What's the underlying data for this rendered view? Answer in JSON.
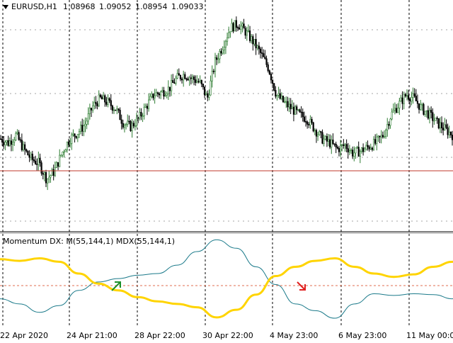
{
  "window": {
    "symbol_label": "EURUSD,H1",
    "quotes": [
      "1.08968",
      "1.09052",
      "1.08954",
      "1.09033"
    ],
    "dropdown_icon": "triangle-down-icon"
  },
  "indicator": {
    "label": "Momentum DX: M(55,144,1) MDX(55,144,1)"
  },
  "x_axis": {
    "labels": [
      "22 Apr 2020",
      "24 Apr 21:00",
      "28 Apr 22:00",
      "30 Apr 22:00",
      "4 May 23:00",
      "6 May 23:00",
      "11 May 00:00"
    ]
  },
  "colors": {
    "bull_candle": "#2e7d32",
    "bear_candle": "#000000",
    "level_line": "#c0392b",
    "momentum_line": "#ffd400",
    "mdx_line": "#1b7a8a",
    "zero_line": "#e26d4f",
    "buy_arrow": "#1e8f2a",
    "sell_arrow": "#e02020"
  },
  "chart_data": [
    {
      "type": "candlestick",
      "symbol": "EURUSD",
      "timeframe": "H1",
      "ohlc_last": {
        "open": 1.08968,
        "high": 1.09052,
        "low": 1.08954,
        "close": 1.09033
      },
      "x": [
        "22 Apr 2020",
        "24 Apr 21:00",
        "28 Apr 22:00",
        "30 Apr 22:00",
        "4 May 23:00",
        "6 May 23:00",
        "11 May 00:00"
      ],
      "close_profile": [
        0.4,
        0.38,
        0.42,
        0.35,
        0.3,
        0.28,
        0.2,
        0.24,
        0.33,
        0.4,
        0.43,
        0.47,
        0.56,
        0.6,
        0.58,
        0.55,
        0.48,
        0.46,
        0.5,
        0.56,
        0.62,
        0.63,
        0.65,
        0.7,
        0.72,
        0.7,
        0.68,
        0.6,
        0.78,
        0.86,
        0.95,
        0.97,
        0.93,
        0.88,
        0.82,
        0.75,
        0.62,
        0.58,
        0.55,
        0.52,
        0.5,
        0.45,
        0.4,
        0.38,
        0.35,
        0.37,
        0.33,
        0.34,
        0.36,
        0.38,
        0.42,
        0.52,
        0.57,
        0.62,
        0.6,
        0.55,
        0.52,
        0.48,
        0.45,
        0.42
      ],
      "grid": true
    },
    {
      "type": "line",
      "name": "Momentum DX",
      "series": [
        {
          "name": "M(55,144,1)",
          "values": [
            0.75,
            0.73,
            0.76,
            0.72,
            0.58,
            0.46,
            0.38,
            0.3,
            0.25,
            0.22,
            0.18,
            0.06,
            0.15,
            0.33,
            0.55,
            0.66,
            0.73,
            0.76,
            0.66,
            0.58,
            0.54,
            0.57,
            0.66,
            0.72
          ]
        },
        {
          "name": "MDX(55,144,1)",
          "values": [
            0.28,
            0.22,
            0.12,
            0.2,
            0.38,
            0.48,
            0.52,
            0.56,
            0.58,
            0.68,
            0.84,
            0.98,
            0.88,
            0.66,
            0.45,
            0.22,
            0.14,
            0.05,
            0.22,
            0.34,
            0.32,
            0.34,
            0.33,
            0.28
          ]
        }
      ],
      "zero_level": 0.48,
      "signals": [
        {
          "type": "buy",
          "at": "25 Apr"
        },
        {
          "type": "sell",
          "at": "4 May"
        }
      ]
    }
  ]
}
